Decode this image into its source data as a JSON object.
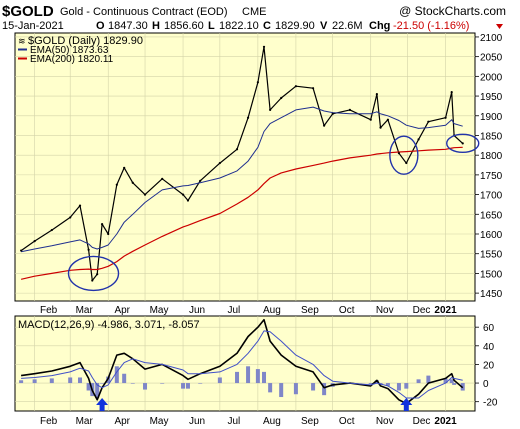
{
  "header": {
    "symbol": "$GOLD",
    "description": "Gold - Continuous Contract (EOD)",
    "exchange": "CME",
    "watermark": "@ StockCharts.com",
    "date": "15-Jan-2021",
    "open_label": "O",
    "open": "1847.30",
    "high_label": "H",
    "high": "1856.60",
    "low_label": "L",
    "low": "1822.10",
    "close_label": "C",
    "close": "1829.90",
    "volume_label": "V",
    "volume": "22.6M",
    "change_label": "Chg",
    "change": "-21.50 (-1.16%)"
  },
  "colors": {
    "panel_bg": "#ffffcc",
    "frame": "#000000",
    "grid": "#d3d3a8",
    "price": "#000000",
    "ema50": "#1f2f8f",
    "ema200": "#cc0000",
    "macd": "#000000",
    "signal": "#4050c8",
    "histogram": "#7f86c8",
    "circle": "#2233aa",
    "arrow": "#1133dd",
    "change_down": "#cc0000"
  },
  "chart_data": [
    {
      "type": "line",
      "title": "$GOLD (Daily) 1829.90",
      "x_ticks": [
        "Feb",
        "Mar",
        "Apr",
        "May",
        "Jun",
        "Jul",
        "Aug",
        "Sep",
        "Oct",
        "Nov",
        "Dec",
        "2021"
      ],
      "y_ticks": [
        1450,
        1500,
        1550,
        1600,
        1650,
        1700,
        1750,
        1800,
        1850,
        1900,
        1950,
        2000,
        2050,
        2100
      ],
      "ylim": [
        1430,
        2110
      ],
      "grid": true,
      "legend_placement": "top-left",
      "x": [
        "Jan 21",
        "Feb 1",
        "Feb 15",
        "Mar 1",
        "Mar 9",
        "Mar 16",
        "Mar 19",
        "Mar 23",
        "Mar 27",
        "Apr 1",
        "Apr 8",
        "Apr 14",
        "Apr 21",
        "May 1",
        "May 15",
        "Jun 1",
        "Jun 5",
        "Jun 15",
        "Jul 1",
        "Jul 15",
        "Jul 24",
        "Aug 1",
        "Aug 6",
        "Aug 11",
        "Aug 20",
        "Sep 1",
        "Sep 15",
        "Sep 24",
        "Oct 1",
        "Oct 15",
        "Nov 1",
        "Nov 6",
        "Nov 9",
        "Nov 15",
        "Nov 24",
        "Nov 30",
        "Dec 10",
        "Dec 18",
        "Jan 1",
        "Jan 6",
        "Jan 8",
        "Jan 15"
      ],
      "series": [
        {
          "name": "$GOLD (Daily) 1829.90",
          "values": [
            1558,
            1582,
            1610,
            1642,
            1672,
            1560,
            1482,
            1498,
            1625,
            1600,
            1725,
            1768,
            1730,
            1700,
            1740,
            1700,
            1685,
            1735,
            1780,
            1815,
            1895,
            1985,
            2075,
            1915,
            1945,
            1975,
            1970,
            1875,
            1905,
            1915,
            1890,
            1955,
            1870,
            1890,
            1805,
            1780,
            1840,
            1885,
            1895,
            1960,
            1850,
            1829.9
          ]
        },
        {
          "name": "EMA(50) 1873.63",
          "values": [
            1555,
            1562,
            1570,
            1580,
            1585,
            1575,
            1566,
            1562,
            1566,
            1572,
            1600,
            1630,
            1650,
            1680,
            1712,
            1722,
            1723,
            1730,
            1742,
            1760,
            1785,
            1820,
            1860,
            1880,
            1895,
            1915,
            1922,
            1912,
            1908,
            1905,
            1905,
            1910,
            1905,
            1900,
            1888,
            1876,
            1868,
            1870,
            1876,
            1890,
            1880,
            1873.63
          ]
        },
        {
          "name": "EMA(200) 1820.11",
          "values": [
            1485,
            1493,
            1500,
            1508,
            1510,
            1511,
            1510,
            1510,
            1513,
            1518,
            1530,
            1544,
            1556,
            1572,
            1594,
            1618,
            1622,
            1634,
            1652,
            1676,
            1693,
            1712,
            1728,
            1742,
            1755,
            1765,
            1774,
            1780,
            1785,
            1793,
            1800,
            1803,
            1804,
            1806,
            1808,
            1809,
            1811,
            1813,
            1815,
            1818,
            1819,
            1820.11
          ]
        }
      ],
      "annotations": [
        "circle around mid-March low",
        "circle around late-November low",
        "circle around mid-January 2021 close"
      ]
    },
    {
      "type": "line",
      "title": "MACD(12,26,9) -4.986, 3.071, -8.057",
      "x_ticks": [
        "Feb",
        "Mar",
        "Apr",
        "May",
        "Jun",
        "Jul",
        "Aug",
        "Sep",
        "Oct",
        "Nov",
        "Dec",
        "2021"
      ],
      "y_ticks": [
        -20,
        0,
        20,
        40,
        60
      ],
      "ylim": [
        -30,
        72
      ],
      "x": [
        "Jan 21",
        "Feb 1",
        "Feb 15",
        "Mar 1",
        "Mar 9",
        "Mar 16",
        "Mar 19",
        "Mar 23",
        "Mar 27",
        "Apr 1",
        "Apr 8",
        "Apr 14",
        "Apr 21",
        "May 1",
        "May 15",
        "Jun 1",
        "Jun 5",
        "Jun 15",
        "Jul 1",
        "Jul 15",
        "Jul 24",
        "Aug 1",
        "Aug 6",
        "Aug 11",
        "Aug 20",
        "Sep 1",
        "Sep 15",
        "Sep 24",
        "Oct 1",
        "Oct 15",
        "Nov 1",
        "Nov 6",
        "Nov 9",
        "Nov 15",
        "Nov 24",
        "Nov 30",
        "Dec 10",
        "Dec 18",
        "Jan 1",
        "Jan 6",
        "Jan 8",
        "Jan 15"
      ],
      "series": [
        {
          "name": "MACD(12,26,9) -4.986",
          "values": [
            8,
            10,
            13,
            18,
            22,
            5,
            -8,
            -18,
            -5,
            5,
            30,
            32,
            26,
            15,
            20,
            8,
            4,
            10,
            18,
            32,
            50,
            60,
            68,
            45,
            30,
            18,
            12,
            -5,
            -2,
            0,
            -3,
            3,
            -3,
            -6,
            -18,
            -22,
            -12,
            0,
            5,
            10,
            3,
            -4.986
          ]
        },
        {
          "name": "Signal 3.071",
          "values": [
            5,
            6,
            8,
            12,
            16,
            13,
            6,
            -2,
            -5,
            -2,
            12,
            22,
            26,
            22,
            20,
            14,
            10,
            10,
            12,
            20,
            32,
            45,
            56,
            55,
            45,
            30,
            20,
            8,
            2,
            0,
            -2,
            0,
            -1,
            -3,
            -10,
            -16,
            -16,
            -8,
            0,
            6,
            5,
            3.071
          ]
        },
        {
          "name": "Histogram -8.057",
          "values": [
            3,
            4,
            5,
            6,
            6,
            -8,
            -14,
            -16,
            0,
            7,
            18,
            10,
            0,
            -7,
            0,
            -6,
            -6,
            0,
            6,
            12,
            18,
            15,
            12,
            -10,
            -15,
            -12,
            -8,
            -13,
            -4,
            0,
            -1,
            3,
            -2,
            -3,
            -8,
            -6,
            4,
            8,
            5,
            4,
            -2,
            -8.057
          ]
        }
      ],
      "annotations": [
        "up arrow under late-March MACD low",
        "up arrow under early-December MACD low"
      ]
    }
  ]
}
